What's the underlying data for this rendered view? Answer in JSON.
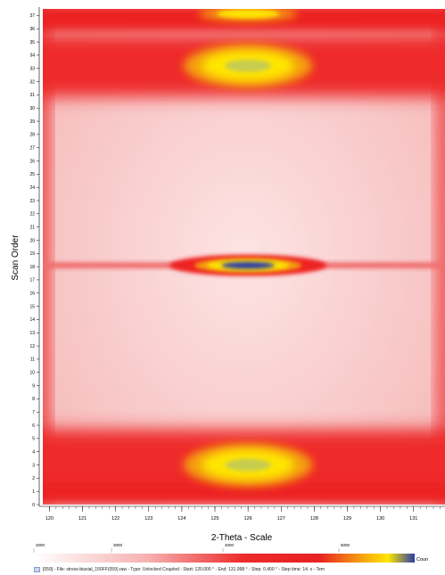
{
  "chart_data": {
    "type": "heatmap",
    "title": "",
    "xlabel": "2-Theta - Scale",
    "ylabel": "Scan Order",
    "xlim": [
      119.8,
      131.95
    ],
    "ylim": [
      0,
      37.5
    ],
    "x_ticks": [
      "120",
      "121",
      "122",
      "123",
      "124",
      "125",
      "126",
      "127",
      "128",
      "129",
      "130",
      "131"
    ],
    "y_ticks": [
      "0",
      "1",
      "2",
      "3",
      "4",
      "5",
      "6",
      "7",
      "8",
      "9",
      "10",
      "11",
      "12",
      "13",
      "14",
      "15",
      "16",
      "17",
      "18",
      "19",
      "20",
      "21",
      "22",
      "23",
      "24",
      "25",
      "26",
      "27",
      "28",
      "29",
      "30",
      "31",
      "32",
      "33",
      "34",
      "35",
      "36",
      "37"
    ],
    "peaks": [
      {
        "scan": 3.0,
        "two_theta": 126.0,
        "intensity": "yellow-green"
      },
      {
        "scan": 18.1,
        "two_theta": 126.0,
        "intensity": "blue (max)"
      },
      {
        "scan": 33.2,
        "two_theta": 126.0,
        "intensity": "yellow-green"
      },
      {
        "scan": 37.4,
        "two_theta": 126.0,
        "intensity": "yellow (partial)"
      }
    ],
    "colorbar": {
      "ticks": [
        "2000",
        "3000",
        "4000",
        "5000"
      ],
      "label": "Coun",
      "colors": [
        "#ffffff",
        "#f4a0a0",
        "#ee2020",
        "#f59a10",
        "#ffe800",
        "#2a3ca8"
      ]
    }
  },
  "footer": {
    "text": "[059] - File: stress-biaxial_150FF(059).raw - Type: Unlocked Coupled - Start: 120.000 ° - End: 131.998 ° - Step: 0.400 ° - Step time: 14. s - Tem"
  }
}
